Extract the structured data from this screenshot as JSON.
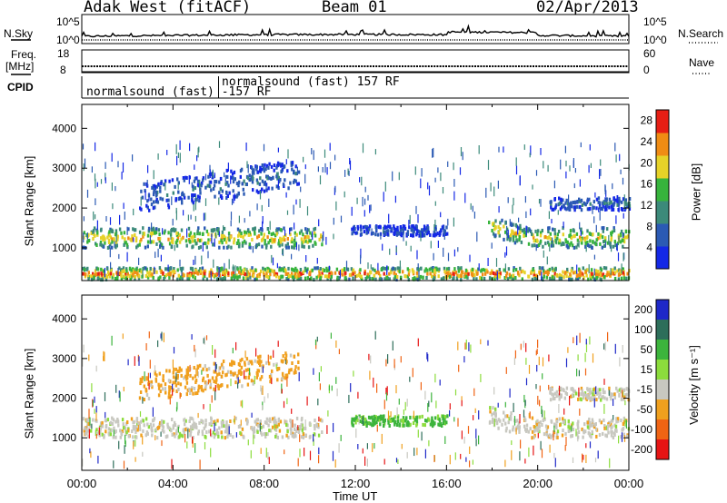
{
  "header": {
    "station": "Adak West (fitACF)",
    "beam": "Beam 01",
    "date": "02/Apr/2013"
  },
  "small_panels": {
    "nsky_label": "N.Sky",
    "nsky_ticks": [
      "10^5",
      "10^0"
    ],
    "nsearch_label": "N.Search",
    "nsearch_ticks": [
      "10^5",
      "10^0"
    ],
    "freq_label_line1": "Freq.",
    "freq_label_line2": "[MHz]",
    "freq_ticks": [
      "18",
      "8"
    ],
    "nave_label": "Nave",
    "nave_ticks": [
      "60",
      "0"
    ],
    "cpid_label": "CPID",
    "cpid_segments": [
      {
        "label": "normalsound (fast) -157 RF",
        "start": "00:00"
      },
      {
        "label": "normalsound (fast) 157 RF",
        "start": "06:00"
      }
    ]
  },
  "chart_data": [
    {
      "type": "heatmap",
      "title": "",
      "quantity": "Power",
      "ylabel": "Slant Range [km]",
      "xlabel": "Time UT",
      "x_ticks": [
        "00:00",
        "04:00",
        "08:00",
        "12:00",
        "16:00",
        "20:00",
        "00:00"
      ],
      "y_ticks": [
        1000,
        2000,
        3000,
        4000
      ],
      "ylim": [
        180,
        4600
      ],
      "xlim_hours": [
        0,
        24
      ],
      "colorbar": {
        "label": "Power [dB]",
        "ticks": [
          4,
          8,
          12,
          16,
          20,
          24,
          28
        ],
        "range": [
          0,
          30
        ],
        "colors": [
          "#1428e6",
          "#2b5ab4",
          "#3c8a7a",
          "#37b43c",
          "#e6d228",
          "#f08c14",
          "#e61e14"
        ]
      },
      "echo_bands": [
        {
          "name": "main near band",
          "from_h": 0,
          "to_h": 10.5,
          "range_km": [
            1000,
            1500
          ],
          "peak_db": 22
        },
        {
          "name": "upper band early",
          "from_h": 2.5,
          "to_h": 9.5,
          "range_km": [
            2100,
            2800
          ],
          "peak_db": 8
        },
        {
          "name": "midday patch",
          "from_h": 11.8,
          "to_h": 16,
          "range_km": [
            1300,
            1550
          ],
          "peak_db": 6
        },
        {
          "name": "main near band late",
          "from_h": 17.8,
          "to_h": 24,
          "range_km": [
            1000,
            1500
          ],
          "peak_db": 20
        },
        {
          "name": "upper band late",
          "from_h": 20.5,
          "to_h": 24,
          "range_km": [
            1950,
            2250
          ],
          "peak_db": 8
        },
        {
          "name": "ground scatter low",
          "from_h": 0,
          "to_h": 24,
          "range_km": [
            200,
            500
          ],
          "peak_db": 26
        }
      ]
    },
    {
      "type": "heatmap",
      "title": "",
      "quantity": "Velocity",
      "ylabel": "Slant Range [km]",
      "xlabel": "Time UT",
      "x_ticks": [
        "00:00",
        "04:00",
        "08:00",
        "12:00",
        "16:00",
        "20:00",
        "00:00"
      ],
      "y_ticks": [
        1000,
        2000,
        3000,
        4000
      ],
      "ylim": [
        180,
        4600
      ],
      "xlim_hours": [
        0,
        24
      ],
      "colorbar": {
        "label": "Velocity [m s⁻¹]",
        "ticks": [
          200,
          100,
          50,
          15,
          -15,
          -50,
          -100,
          -200
        ],
        "colors": [
          "#1e28c8",
          "#2d6e5a",
          "#3cb43c",
          "#8cdc3c",
          "#c8c8c0",
          "#f0a01e",
          "#f06414",
          "#e61414"
        ]
      },
      "echo_bands": [
        {
          "name": "ground scatter band",
          "from_h": 0,
          "to_h": 10.5,
          "range_km": [
            1000,
            1500
          ],
          "velocity": 0
        },
        {
          "name": "upper band early",
          "from_h": 2.5,
          "to_h": 9.5,
          "range_km": [
            2100,
            2800
          ],
          "velocity": -30
        },
        {
          "name": "midday patch",
          "from_h": 11.8,
          "to_h": 16,
          "range_km": [
            1300,
            1550
          ],
          "velocity": 40
        },
        {
          "name": "late ground scatter",
          "from_h": 17.8,
          "to_h": 24,
          "range_km": [
            1000,
            1500
          ],
          "velocity": 0
        },
        {
          "name": "upper band late",
          "from_h": 20.5,
          "to_h": 24,
          "range_km": [
            1950,
            2250
          ],
          "velocity": 0
        }
      ]
    }
  ]
}
